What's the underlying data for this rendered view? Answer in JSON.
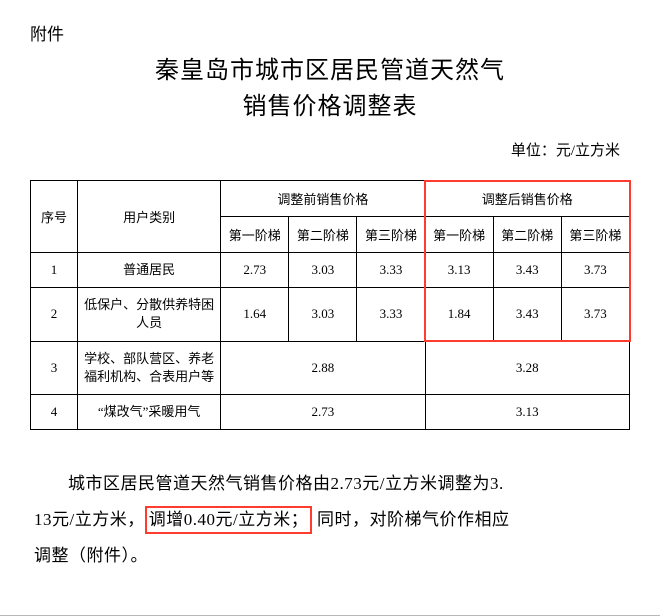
{
  "attachment_label": "附件",
  "title_line1": "秦皇岛市城市区居民管道天然气",
  "title_line2": "销售价格调整表",
  "unit_text": "单位：元/立方米",
  "table": {
    "head": {
      "seq": "序号",
      "category": "用户类别",
      "before": "调整前销售价格",
      "after": "调整后销售价格",
      "tier1": "第一阶梯",
      "tier2": "第二阶梯",
      "tier3": "第三阶梯"
    },
    "rows": [
      {
        "seq": "1",
        "category": "普通居民",
        "before": [
          "2.73",
          "3.03",
          "3.33"
        ],
        "after": [
          "3.13",
          "3.43",
          "3.73"
        ]
      },
      {
        "seq": "2",
        "category": "低保户、分散供养特困人员",
        "before": [
          "1.64",
          "3.03",
          "3.33"
        ],
        "after": [
          "1.84",
          "3.43",
          "3.73"
        ]
      },
      {
        "seq": "3",
        "category": "学校、部队营区、养老福利机构、合表用户等",
        "before_merged": "2.88",
        "after_merged": "3.28"
      },
      {
        "seq": "4",
        "category": "“煤改气”采暖用气",
        "before_merged": "2.73",
        "after_merged": "3.13"
      }
    ]
  },
  "paragraph": {
    "p1a": "城市区居民管道天然气销售价格由2.73元/立方米调整为3.",
    "p1b": "13元/立方米，",
    "highlight": "调增0.40元/立方米；",
    "p1c": " 同时，对阶梯气价作相应",
    "p1d": "调整（附件）。"
  },
  "highlight_box": {
    "border_color": "#ff3b2f"
  }
}
